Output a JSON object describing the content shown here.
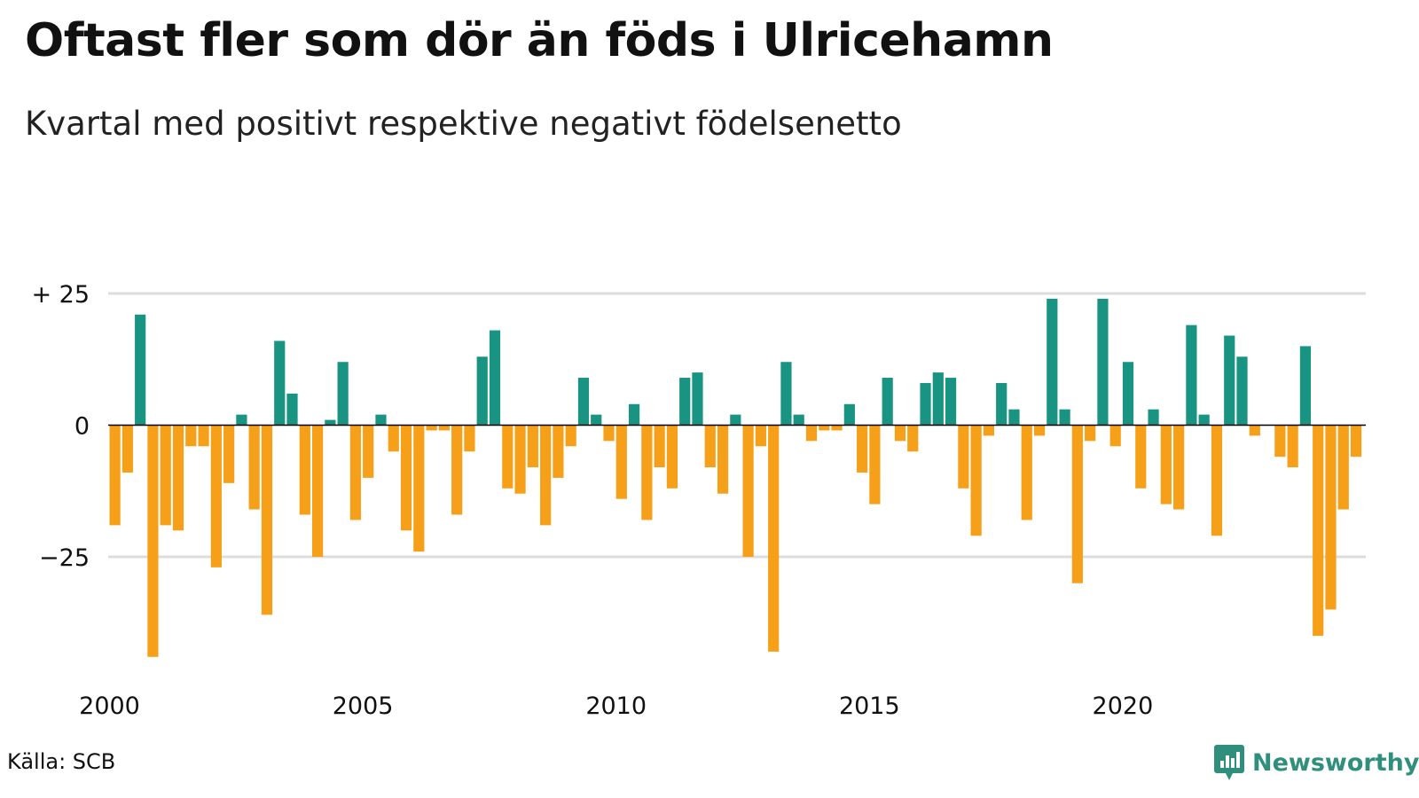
{
  "title": "Oftast fler som dör än föds i Ulricehamn",
  "subtitle": "Kvartal med positivt respektive negativt födelsenetto",
  "source": "Källa: SCB",
  "brand": {
    "name": "Newsworthy",
    "icon": "newsworthy-logo-icon"
  },
  "colors": {
    "positive": "#1a9482",
    "negative": "#f6a01a",
    "grid": "#dddddd",
    "zero_line": "#000000"
  },
  "chart_data": {
    "type": "bar",
    "frequency": "quarterly",
    "x_start": "2000 Q1",
    "x_end": "2024 Q4",
    "x_ticks": [
      "2000",
      "2005",
      "2010",
      "2015",
      "2020"
    ],
    "y_ticks": [
      25,
      0,
      -25
    ],
    "y_tick_labels": [
      "+ 25",
      "0",
      "−25"
    ],
    "ylim": [
      -46,
      27
    ],
    "grid": true,
    "values": [
      -19,
      -9,
      21,
      -44,
      -19,
      -20,
      -4,
      -4,
      -27,
      -11,
      2,
      -16,
      -36,
      16,
      6,
      -17,
      -25,
      1,
      12,
      -18,
      -10,
      2,
      -5,
      -20,
      -24,
      -1,
      -1,
      -17,
      -5,
      13,
      18,
      -12,
      -13,
      -8,
      -19,
      -10,
      -4,
      9,
      2,
      -3,
      -14,
      4,
      -18,
      -8,
      -12,
      9,
      10,
      -8,
      -13,
      2,
      -25,
      -4,
      -43,
      12,
      2,
      -3,
      -1,
      -1,
      4,
      -9,
      -15,
      9,
      -3,
      -5,
      8,
      10,
      9,
      -12,
      -21,
      -2,
      8,
      3,
      -18,
      -2,
      24,
      3,
      -30,
      -3,
      24,
      -4,
      12,
      -12,
      3,
      -15,
      -16,
      19,
      2,
      -21,
      17,
      13,
      -2,
      0,
      -6,
      -8,
      15,
      -40,
      -35,
      -16,
      -6,
      0
    ]
  }
}
